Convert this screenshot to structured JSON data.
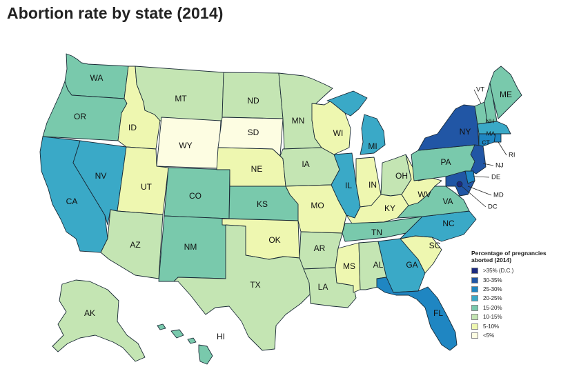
{
  "title": "Abortion rate by state (2014)",
  "legend": {
    "title": "Percentage of pregnancies aborted (2014)",
    "items": [
      {
        "label": ">35% (D.C.)",
        "color": "#1c2a7f"
      },
      {
        "label": "30-35%",
        "color": "#2156a5"
      },
      {
        "label": "25-30%",
        "color": "#1f86c2"
      },
      {
        "label": "20-25%",
        "color": "#3aa9c7"
      },
      {
        "label": "15-20%",
        "color": "#79c9ac"
      },
      {
        "label": "10-15%",
        "color": "#c4e5b3"
      },
      {
        "label": "5-10%",
        "color": "#eef7b0"
      },
      {
        "label": "<5%",
        "color": "#fdfde2"
      }
    ]
  },
  "states": {
    "WA": "15-20%",
    "OR": "15-20%",
    "CA": "20-25%",
    "NV": "20-25%",
    "ID": "5-10%",
    "MT": "10-15%",
    "WY": "<5%",
    "UT": "5-10%",
    "AZ": "10-15%",
    "CO": "15-20%",
    "NM": "15-20%",
    "ND": "10-15%",
    "SD": "<5%",
    "NE": "5-10%",
    "KS": "15-20%",
    "OK": "5-10%",
    "TX": "10-15%",
    "MN": "10-15%",
    "IA": "10-15%",
    "MO": "5-10%",
    "AR": "10-15%",
    "LA": "10-15%",
    "WI": "5-10%",
    "IL": "20-25%",
    "MI": "20-25%",
    "IN": "5-10%",
    "OH": "10-15%",
    "KY": "5-10%",
    "TN": "15-20%",
    "MS": "5-10%",
    "AL": "10-15%",
    "GA": "20-25%",
    "FL": "25-30%",
    "SC": "5-10%",
    "NC": "20-25%",
    "VA": "15-20%",
    "WV": "5-10%",
    "PA": "15-20%",
    "NY": "30-35%",
    "VT": "15-20%",
    "NH": "15-20%",
    "ME": "15-20%",
    "MA": "20-25%",
    "RI": "25-30%",
    "CT": "25-30%",
    "NJ": "30-35%",
    "DE": "25-30%",
    "MD": "30-35%",
    "DC": ">35% (D.C.)",
    "AK": "10-15%",
    "HI": "15-20%"
  }
}
